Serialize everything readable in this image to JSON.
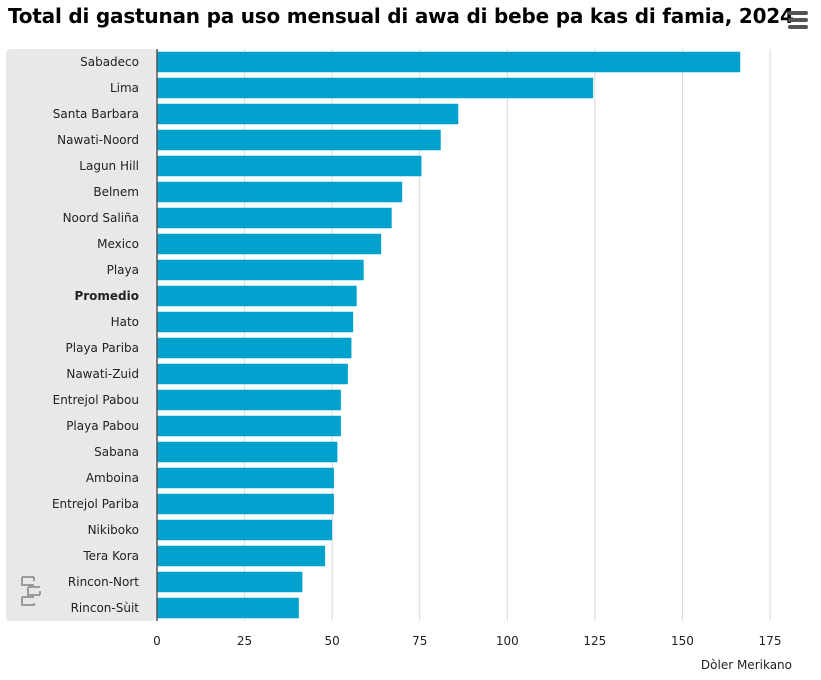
{
  "title": "Total di gastunan pa uso mensual di awa di bebe pa kas di famia, 2024",
  "menu_icon": "hamburger-menu-icon",
  "logo_icon": "cbs-logo-icon",
  "colors": {
    "bar": "#00a1cd",
    "panel": "#e8e8e8",
    "grid": "#d9d9d9",
    "axis": "#555555"
  },
  "chart_data": {
    "type": "bar",
    "orientation": "horizontal",
    "categories": [
      "Sabadeco",
      "Lima",
      "Santa Barbara",
      "Nawati-Noord",
      "Lagun Hill",
      "Belnem",
      "Noord Saliña",
      "Mexico",
      "Playa",
      "Promedio",
      "Hato",
      "Playa Pariba",
      "Nawati-Zuid",
      "Entrejol Pabou",
      "Playa Pabou",
      "Sabana",
      "Amboina",
      "Entrejol Pariba",
      "Nikiboko",
      "Tera Kora",
      "Rincon-Nort",
      "Rincon-Sùit"
    ],
    "values": [
      166.5,
      124.5,
      86,
      81,
      75.5,
      70,
      67,
      64,
      59,
      57,
      56,
      55.5,
      54.5,
      52.5,
      52.5,
      51.5,
      50.5,
      50.5,
      50,
      48,
      41.5,
      40.5
    ],
    "highlight_category": "Promedio",
    "xlim": [
      0,
      175
    ],
    "xticks": [
      "0",
      "25",
      "50",
      "75",
      "100",
      "125",
      "150",
      "175"
    ],
    "xlabel": "Dòler Merikano",
    "grid": true
  }
}
